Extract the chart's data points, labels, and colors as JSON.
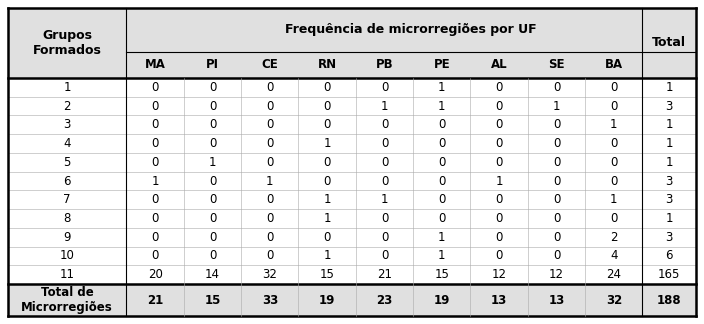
{
  "header_row1_left": "Grupos\nFormados",
  "header_row1_center": "Frequência de microrregiões por UF",
  "header_row1_right": "Total",
  "sub_headers": [
    "MA",
    "PI",
    "CE",
    "RN",
    "PB",
    "PE",
    "AL",
    "SE",
    "BA"
  ],
  "groups": [
    "1",
    "2",
    "3",
    "4",
    "5",
    "6",
    "7",
    "8",
    "9",
    "10",
    "11"
  ],
  "data": [
    [
      0,
      0,
      0,
      0,
      0,
      1,
      0,
      0,
      0,
      1
    ],
    [
      0,
      0,
      0,
      0,
      1,
      1,
      0,
      1,
      0,
      3
    ],
    [
      0,
      0,
      0,
      0,
      0,
      0,
      0,
      0,
      1,
      1
    ],
    [
      0,
      0,
      0,
      1,
      0,
      0,
      0,
      0,
      0,
      1
    ],
    [
      0,
      1,
      0,
      0,
      0,
      0,
      0,
      0,
      0,
      1
    ],
    [
      1,
      0,
      1,
      0,
      0,
      0,
      1,
      0,
      0,
      3
    ],
    [
      0,
      0,
      0,
      1,
      1,
      0,
      0,
      0,
      1,
      3
    ],
    [
      0,
      0,
      0,
      1,
      0,
      0,
      0,
      0,
      0,
      1
    ],
    [
      0,
      0,
      0,
      0,
      0,
      1,
      0,
      0,
      2,
      3
    ],
    [
      0,
      0,
      0,
      1,
      0,
      1,
      0,
      0,
      4,
      6
    ],
    [
      20,
      14,
      32,
      15,
      21,
      15,
      12,
      12,
      24,
      165
    ]
  ],
  "total_row_label": "Total de\nMicrorregiões",
  "total_row": [
    21,
    15,
    33,
    19,
    23,
    19,
    13,
    13,
    32,
    188
  ],
  "bg_color": "#ffffff",
  "header_bg": "#e0e0e0",
  "font_size": 8.5,
  "header_font_size": 9.0,
  "fig_width": 7.04,
  "fig_height": 3.24,
  "dpi": 100
}
